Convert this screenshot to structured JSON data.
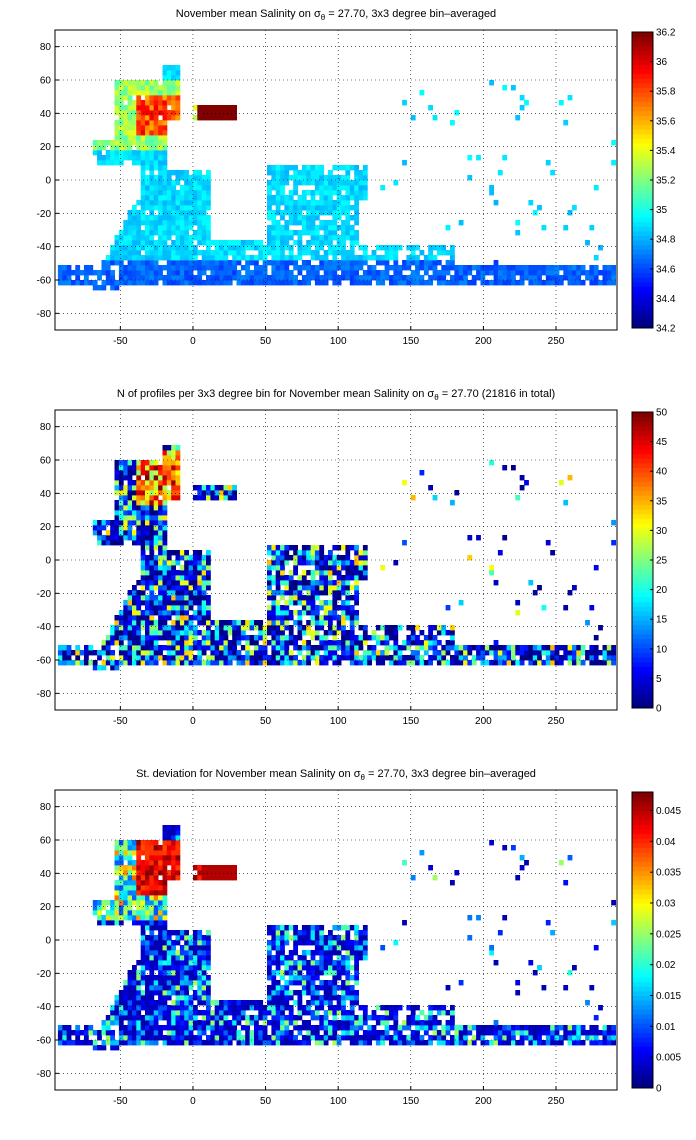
{
  "chart_data": [
    {
      "type": "heatmap",
      "title_parts": [
        "November mean Salinity on ",
        "σ",
        "θ",
        " = 27.70, 3x3 degree bin–averaged"
      ],
      "xticks": [
        -50,
        0,
        50,
        100,
        150,
        200,
        250
      ],
      "yticks": [
        80,
        60,
        40,
        20,
        0,
        -20,
        -40,
        -60,
        -80
      ],
      "xlim": [
        -95,
        292
      ],
      "ylim": [
        -90,
        90
      ],
      "colorbar": {
        "min": 34.2,
        "max": 36.2,
        "ticks": [
          "36.2",
          "36",
          "35.8",
          "35.6",
          "35.4",
          "35.2",
          "35",
          "34.8",
          "34.6",
          "34.4",
          "34.2"
        ]
      },
      "grid": true,
      "colormap": "jet"
    },
    {
      "type": "heatmap",
      "title_parts": [
        "N of profiles per 3x3 degree bin for November mean Salinity on ",
        "σ",
        "θ",
        " = 27.70 (21816 in total)"
      ],
      "xticks": [
        -50,
        0,
        50,
        100,
        150,
        200,
        250
      ],
      "yticks": [
        80,
        60,
        40,
        20,
        0,
        -20,
        -40,
        -60,
        -80
      ],
      "xlim": [
        -95,
        292
      ],
      "ylim": [
        -90,
        90
      ],
      "colorbar": {
        "min": 0,
        "max": 50,
        "ticks": [
          "50",
          "45",
          "40",
          "35",
          "30",
          "25",
          "20",
          "15",
          "10",
          "5",
          "0"
        ]
      },
      "grid": true,
      "colormap": "jet"
    },
    {
      "type": "heatmap",
      "title_parts": [
        "St. deviation for November mean Salinity on ",
        "σ",
        "θ",
        " = 27.70, 3x3 degree bin–averaged"
      ],
      "xticks": [
        -50,
        0,
        50,
        100,
        150,
        200,
        250
      ],
      "yticks": [
        80,
        60,
        40,
        20,
        0,
        -20,
        -40,
        -60,
        -80
      ],
      "xlim": [
        -95,
        292
      ],
      "ylim": [
        -90,
        90
      ],
      "colorbar": {
        "min": 0,
        "max": 0.048,
        "ticks": [
          "0.045",
          "0.04",
          "0.035",
          "0.03",
          "0.025",
          "0.02",
          "0.015",
          "0.01",
          "0.005",
          "0"
        ]
      },
      "grid": true,
      "colormap": "jet"
    }
  ]
}
